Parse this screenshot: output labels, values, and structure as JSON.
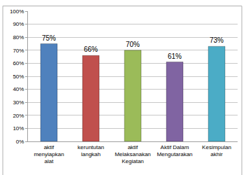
{
  "chart_data": {
    "type": "bar",
    "categories": [
      "aktif menyiapkan alat",
      "keruntutan langkah",
      "aktif Melaksanakan Kegiatan",
      "Aktif Dalam Mengutarakan",
      "Kesimpulan akhir"
    ],
    "values": [
      75,
      66,
      70,
      61,
      73
    ],
    "value_labels": [
      "75%",
      "66%",
      "70%",
      "61%",
      "73%"
    ],
    "colors": [
      "#4f81bd",
      "#c0504d",
      "#9bbb59",
      "#8064a2",
      "#4bacc6"
    ],
    "ylim": [
      0,
      100
    ],
    "yticks": [
      {
        "value": 0,
        "label": "0%"
      },
      {
        "value": 10,
        "label": "10%"
      },
      {
        "value": 20,
        "label": "20%"
      },
      {
        "value": 30,
        "label": "30%"
      },
      {
        "value": 40,
        "label": "40%"
      },
      {
        "value": 50,
        "label": "50%"
      },
      {
        "value": 60,
        "label": "60%"
      },
      {
        "value": 70,
        "label": "70%"
      },
      {
        "value": 80,
        "label": "80%"
      },
      {
        "value": 90,
        "label": "90%"
      },
      {
        "value": 100,
        "label": "100%"
      }
    ],
    "grid": true,
    "data_labels": true
  }
}
